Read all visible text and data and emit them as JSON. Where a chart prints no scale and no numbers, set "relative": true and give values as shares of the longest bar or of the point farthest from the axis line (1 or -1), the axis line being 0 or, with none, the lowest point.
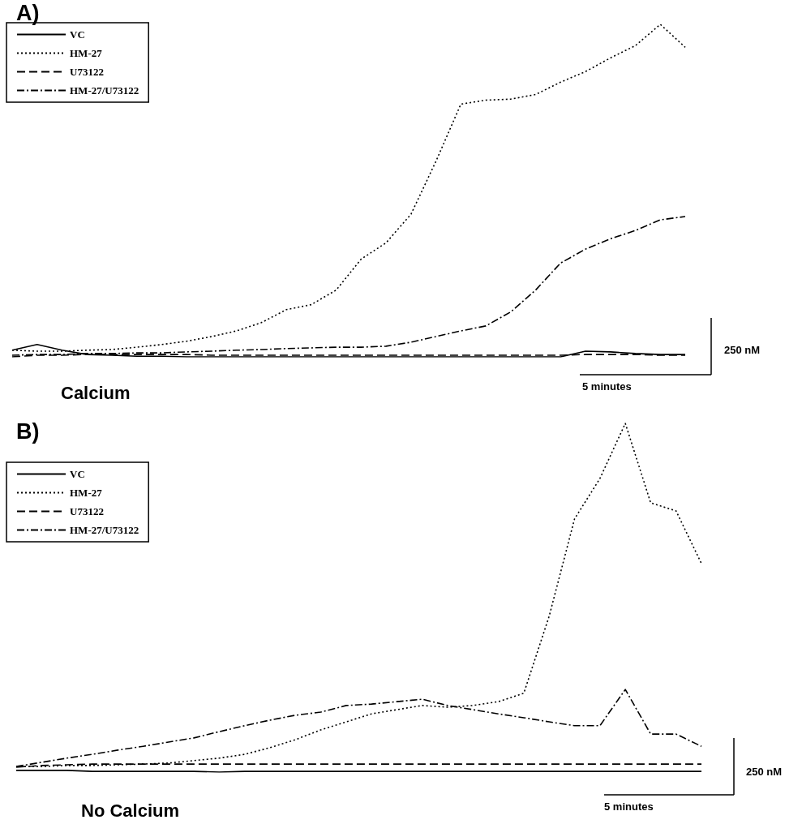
{
  "chart_data": [
    {
      "type": "line",
      "title": "A)",
      "subtitle": "Calcium",
      "relative": true,
      "legend": "top left",
      "marker": "none",
      "annotations": [
        "250 nM",
        "5 minutes"
      ],
      "categories": [
        null,
        null,
        null,
        null,
        null,
        null,
        null,
        null,
        null,
        null,
        null,
        null,
        null,
        null,
        null,
        null,
        null,
        null,
        null,
        null,
        null,
        null,
        null,
        null,
        null,
        null,
        null,
        null
      ],
      "series": [
        {
          "name": "VC",
          "color": "#000000",
          "line_style": "solid",
          "values": [
            0.02,
            0.037,
            0.02,
            0.007,
            0.005,
            0.002,
            0.002,
            0.0,
            0.0,
            0.0,
            0.0,
            0.0,
            0.0,
            0.0,
            0.0,
            0.0,
            0.0,
            0.0,
            0.0,
            0.0,
            0.0,
            0.0,
            0.0,
            0.017,
            0.015,
            0.01,
            0.007,
            0.007
          ]
        },
        {
          "name": "HM-27",
          "color": "#000000",
          "line_style": "dotted",
          "values": [
            0.02,
            0.017,
            0.017,
            0.02,
            0.022,
            0.029,
            0.037,
            0.047,
            0.061,
            0.078,
            0.103,
            0.142,
            0.157,
            0.201,
            0.294,
            0.343,
            0.429,
            0.588,
            0.76,
            0.772,
            0.775,
            0.789,
            0.826,
            0.858,
            0.899,
            0.936,
            1.0,
            0.931
          ]
        },
        {
          "name": "U73122",
          "color": "#000000",
          "line_style": "dashed",
          "values": [
            0.0,
            0.005,
            0.005,
            0.007,
            0.007,
            0.007,
            0.007,
            0.007,
            0.005,
            0.005,
            0.005,
            0.005,
            0.005,
            0.005,
            0.005,
            0.005,
            0.005,
            0.005,
            0.005,
            0.005,
            0.005,
            0.005,
            0.005,
            0.007,
            0.007,
            0.007,
            0.005,
            0.005
          ]
        },
        {
          "name": "HM-27/U73122",
          "color": "#000000",
          "line_style": "dashdot",
          "values": [
            0.005,
            0.007,
            0.007,
            0.01,
            0.01,
            0.012,
            0.012,
            0.015,
            0.017,
            0.02,
            0.022,
            0.025,
            0.027,
            0.029,
            0.029,
            0.032,
            0.044,
            0.061,
            0.078,
            0.093,
            0.135,
            0.201,
            0.282,
            0.324,
            0.355,
            0.38,
            0.412,
            0.422
          ]
        }
      ]
    },
    {
      "type": "line",
      "title": "B)",
      "subtitle": "No Calcium",
      "relative": true,
      "legend": "top left",
      "marker": "none",
      "annotations": [
        "250 nM",
        "5 minutes"
      ],
      "categories": [
        null,
        null,
        null,
        null,
        null,
        null,
        null,
        null,
        null,
        null,
        null,
        null,
        null,
        null,
        null,
        null,
        null,
        null,
        null,
        null,
        null,
        null,
        null,
        null,
        null,
        null,
        null,
        null
      ],
      "series": [
        {
          "name": "VC",
          "color": "#000000",
          "line_style": "solid",
          "values": [
            0.005,
            0.005,
            0.005,
            0.002,
            0.002,
            0.002,
            0.002,
            0.002,
            0.0,
            0.002,
            0.002,
            0.002,
            0.002,
            0.002,
            0.002,
            0.002,
            0.002,
            0.002,
            0.002,
            0.002,
            0.002,
            0.002,
            0.002,
            0.002,
            0.002,
            0.002,
            0.002,
            0.002
          ]
        },
        {
          "name": "HM-27",
          "color": "#000000",
          "line_style": "dotted",
          "values": [
            0.016,
            0.016,
            0.019,
            0.019,
            0.021,
            0.023,
            0.026,
            0.033,
            0.04,
            0.051,
            0.07,
            0.093,
            0.121,
            0.144,
            0.167,
            0.179,
            0.191,
            0.186,
            0.191,
            0.202,
            0.226,
            0.447,
            0.726,
            0.842,
            1.0,
            0.772,
            0.749,
            0.598
          ]
        },
        {
          "name": "U73122",
          "color": "#000000",
          "line_style": "dashed",
          "values": [
            0.014,
            0.019,
            0.021,
            0.023,
            0.023,
            0.023,
            0.023,
            0.023,
            0.023,
            0.023,
            0.023,
            0.023,
            0.023,
            0.023,
            0.023,
            0.023,
            0.023,
            0.023,
            0.023,
            0.023,
            0.023,
            0.023,
            0.023,
            0.023,
            0.023,
            0.023,
            0.023,
            0.023
          ]
        },
        {
          "name": "HM-27/U73122",
          "color": "#000000",
          "line_style": "dashdot",
          "values": [
            0.016,
            0.028,
            0.04,
            0.051,
            0.063,
            0.074,
            0.086,
            0.098,
            0.116,
            0.133,
            0.149,
            0.163,
            0.172,
            0.191,
            0.195,
            0.202,
            0.209,
            0.191,
            0.179,
            0.167,
            0.156,
            0.144,
            0.133,
            0.133,
            0.237,
            0.109,
            0.109,
            0.074
          ]
        }
      ]
    }
  ]
}
